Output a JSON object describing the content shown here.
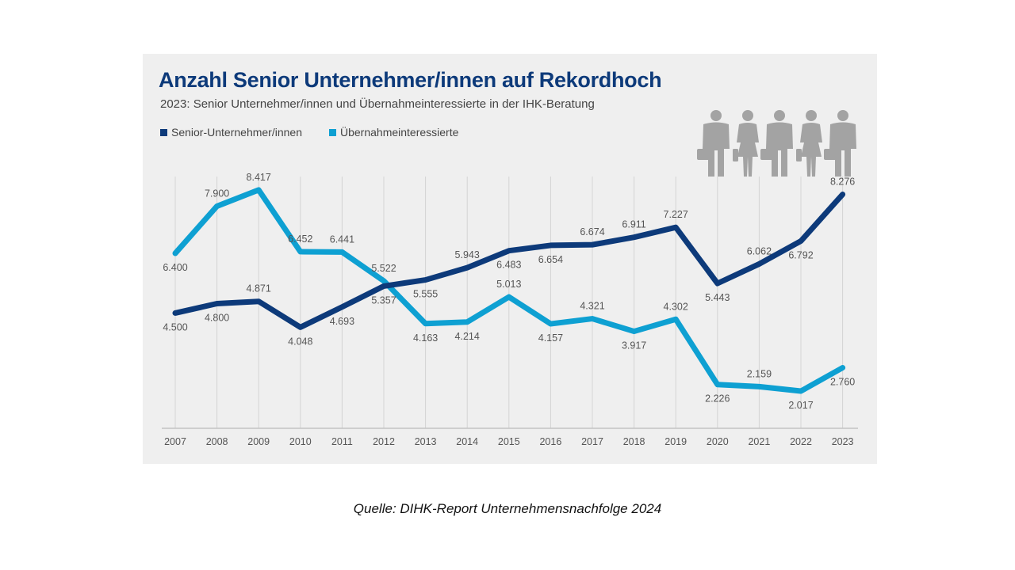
{
  "source": "Quelle: DIHK-Report Unternehmensnachfolge 2024",
  "chart_data": {
    "type": "line",
    "title": "Anzahl Senior Unternehmer/innen  auf Rekordhoch",
    "subtitle": "2023: Senior Unternehmer/innen und Übernahmeinteressierte in der IHK-Beratung",
    "xlabel": "",
    "ylabel": "",
    "grid": "vertical",
    "legend_position": "top-left",
    "x": [
      "2007",
      "2008",
      "2009",
      "2010",
      "2011",
      "2012",
      "2013",
      "2014",
      "2015",
      "2016",
      "2017",
      "2018",
      "2019",
      "2020",
      "2021",
      "2022",
      "2023"
    ],
    "series": [
      {
        "name": "Senior-Unternehmer/innen",
        "color": "#0d3a7a",
        "values": [
          4500,
          4800,
          4871,
          4048,
          4693,
          5357,
          5555,
          5943,
          6483,
          6654,
          6674,
          6911,
          7227,
          5443,
          6062,
          6792,
          8276
        ],
        "labels": [
          "4.500",
          "4.800",
          "4.871",
          "4.048",
          "4.693",
          "5.357",
          "5.555",
          "5.943",
          "6.483",
          "6.654",
          "6.674",
          "6.911",
          "7.227",
          "5.443",
          "6.062",
          "6.792",
          "8.276"
        ]
      },
      {
        "name": "Übernahmeinteressierte",
        "color": "#0ea0d2",
        "values": [
          6400,
          7900,
          8417,
          6452,
          6441,
          5522,
          4163,
          4214,
          5013,
          4157,
          4321,
          3917,
          4302,
          2226,
          2159,
          2017,
          2760
        ],
        "labels": [
          "6.400",
          "7.900",
          "8.417",
          "6.452",
          "6.441",
          "5.522",
          "4.163",
          "4.214",
          "5.013",
          "4.157",
          "4.321",
          "3.917",
          "4.302",
          "2.226",
          "2.159",
          "2.017",
          "2.760"
        ]
      }
    ]
  }
}
